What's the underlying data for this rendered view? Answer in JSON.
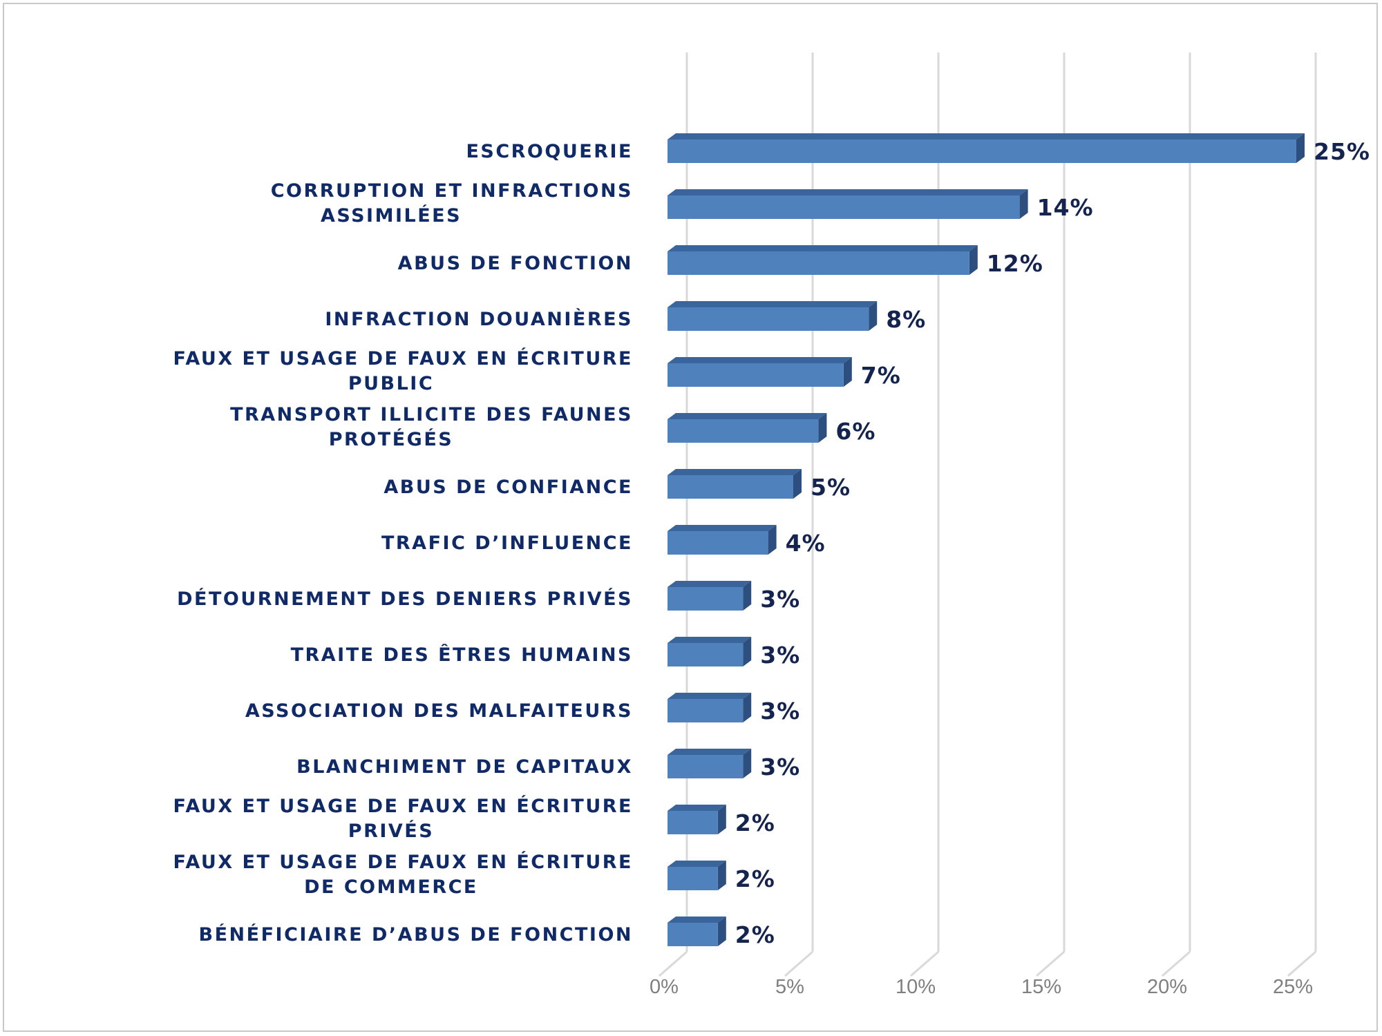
{
  "chart_data": {
    "type": "bar",
    "orientation": "horizontal",
    "style": "3d",
    "title": "",
    "xlabel": "",
    "ylabel": "",
    "categories": [
      "ESCROQUERIE",
      "CORRUPTION ET INFRACTIONS ASSIMILÉES",
      "ABUS DE FONCTION",
      "INFRACTION DOUANIÈRES",
      "FAUX ET USAGE DE FAUX EN ÉCRITURE PUBLIC",
      "TRANSPORT ILLICITE DES FAUNES PROTÉGÉS",
      "ABUS DE CONFIANCE",
      "TRAFIC D’INFLUENCE",
      "DÉTOURNEMENT DES DENIERS PRIVÉS",
      "TRAITE DES ÊTRES HUMAINS",
      "ASSOCIATION DES MALFAITEURS",
      "BLANCHIMENT DE CAPITAUX",
      "FAUX ET USAGE DE FAUX EN ÉCRITURE PRIVÉS",
      "FAUX ET USAGE DE FAUX EN ÉCRITURE DE COMMERCE",
      "BÉNÉFICIAIRE D’ABUS DE FONCTION"
    ],
    "values": [
      25,
      14,
      12,
      8,
      7,
      6,
      5,
      4,
      3,
      3,
      3,
      3,
      2,
      2,
      2
    ],
    "value_labels": [
      "25%",
      "14%",
      "12%",
      "8%",
      "7%",
      "6%",
      "5%",
      "4%",
      "3%",
      "3%",
      "3%",
      "3%",
      "2%",
      "2%",
      "2%"
    ],
    "category_label_lines": [
      [
        "ESCROQUERIE"
      ],
      [
        "CORRUPTION ET INFRACTIONS",
        "ASSIMILÉES"
      ],
      [
        "ABUS DE FONCTION"
      ],
      [
        "INFRACTION DOUANIÈRES"
      ],
      [
        "FAUX ET USAGE DE FAUX EN ÉCRITURE",
        "PUBLIC"
      ],
      [
        "TRANSPORT ILLICITE DES FAUNES",
        "PROTÉGÉS"
      ],
      [
        "ABUS DE CONFIANCE"
      ],
      [
        "TRAFIC D’INFLUENCE"
      ],
      [
        "DÉTOURNEMENT DES DENIERS PRIVÉS"
      ],
      [
        "TRAITE DES ÊTRES HUMAINS"
      ],
      [
        "ASSOCIATION DES MALFAITEURS"
      ],
      [
        "BLANCHIMENT DE CAPITAUX"
      ],
      [
        "FAUX ET USAGE DE FAUX EN ÉCRITURE",
        "PRIVÉS"
      ],
      [
        "FAUX ET USAGE DE FAUX EN ÉCRITURE",
        "DE COMMERCE"
      ],
      [
        "BÉNÉFICIAIRE D’ABUS DE FONCTION"
      ]
    ],
    "xlim": [
      0,
      25
    ],
    "x_ticks": [
      0,
      5,
      10,
      15,
      20,
      25
    ],
    "x_tick_labels": [
      "0%",
      "5%",
      "10%",
      "15%",
      "20%",
      "25%"
    ],
    "grid": true,
    "legend": "none",
    "colors": {
      "bar_front": "#4f81bd",
      "bar_top": "#3a649c",
      "bar_side": "#2c4f80",
      "label_text": "#0f2a66",
      "value_text": "#14244f",
      "grid": "#d9d9d9",
      "tick_text": "#7f7f7f"
    }
  }
}
